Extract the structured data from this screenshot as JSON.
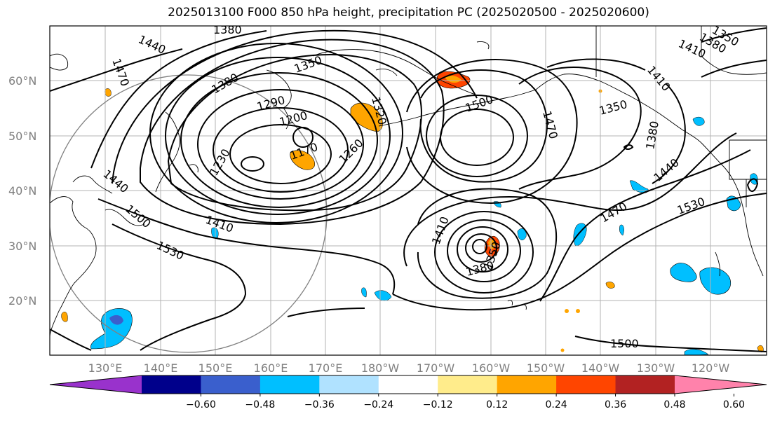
{
  "title": "2025013100 F000 850 hPa height, precipitation PC (2025020500 - 2025020600)",
  "map": {
    "region": "North Pacific",
    "projection": "equirectangular",
    "gridlines": true,
    "lat_labels": [
      "60°N",
      "50°N",
      "40°N",
      "30°N",
      "20°N"
    ],
    "lon_labels": [
      "130°E",
      "140°E",
      "150°E",
      "160°E",
      "170°E",
      "180°W",
      "170°W",
      "160°W",
      "150°W",
      "140°W",
      "130°W",
      "120°W"
    ],
    "contour_labels": [
      "1380",
      "1440",
      "1470",
      "1350",
      "1380",
      "1290",
      "1200",
      "1320",
      "1500",
      "1170",
      "1230",
      "1260",
      "1470",
      "1440",
      "1500",
      "1410",
      "1530",
      "1410",
      "1350",
      "1380",
      "1470",
      "1530",
      "1440",
      "1380",
      "1350",
      "1410",
      "1410",
      "1380",
      "1350",
      "1500"
    ],
    "coastline_color": "#000000",
    "contour_color": "#000000",
    "circle_color": "#808080"
  },
  "colorbar": {
    "ticks": [
      "−0.60",
      "−0.48",
      "−0.36",
      "−0.24",
      "−0.12",
      "0.12",
      "0.24",
      "0.36",
      "0.48",
      "0.60"
    ],
    "colors": [
      "#9932cc",
      "#00008b",
      "#3a5fcd",
      "#00bfff",
      "#b0e2ff",
      "#ffffff",
      "#ffec8b",
      "#ffa500",
      "#ff4500",
      "#b22222",
      "#ff82ab"
    ],
    "extend": "both"
  }
}
